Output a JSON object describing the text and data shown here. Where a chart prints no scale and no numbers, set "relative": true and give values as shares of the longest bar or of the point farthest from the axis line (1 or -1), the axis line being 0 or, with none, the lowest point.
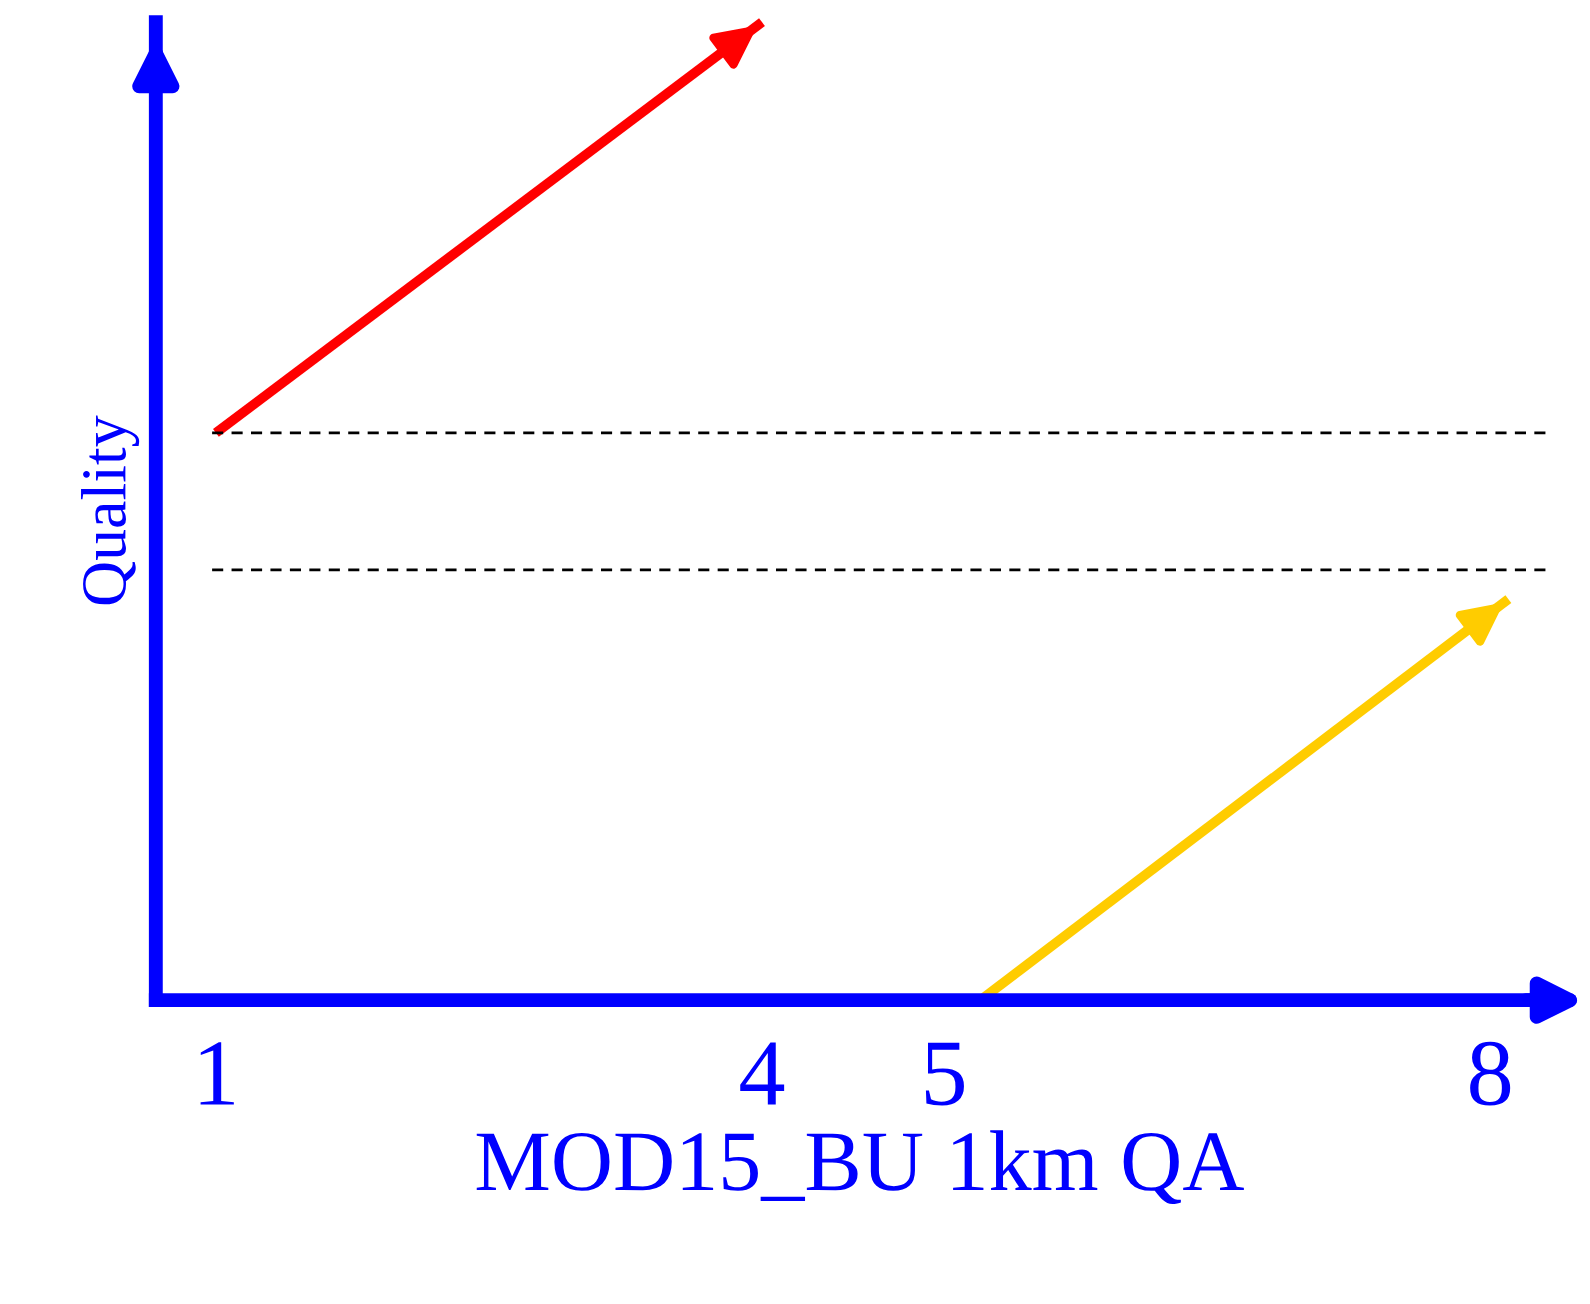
{
  "chart_data": {
    "type": "line",
    "relative": true,
    "xlabel": "MOD15_BU 1km QA",
    "ylabel": "Quality",
    "xlim": [
      0.67,
      8.4
    ],
    "xticks": [
      1,
      4,
      5,
      8
    ],
    "legend": false,
    "grid": false,
    "marker": "none",
    "line_style": "solid",
    "series": [
      {
        "color": "#ff0000",
        "x": [
          1,
          4
        ],
        "values": [
          0.58,
          1
        ]
      },
      {
        "color": "#ffcc00",
        "x": [
          5.2,
          8.1
        ],
        "values": [
          0,
          0.41
        ]
      }
    ],
    "ref_lines": [
      {
        "axis": "y",
        "value": 0.58,
        "color": "#000000",
        "line_style": "dashed"
      },
      {
        "axis": "y",
        "value": 0.44,
        "color": "#000000",
        "line_style": "dashed"
      }
    ]
  }
}
